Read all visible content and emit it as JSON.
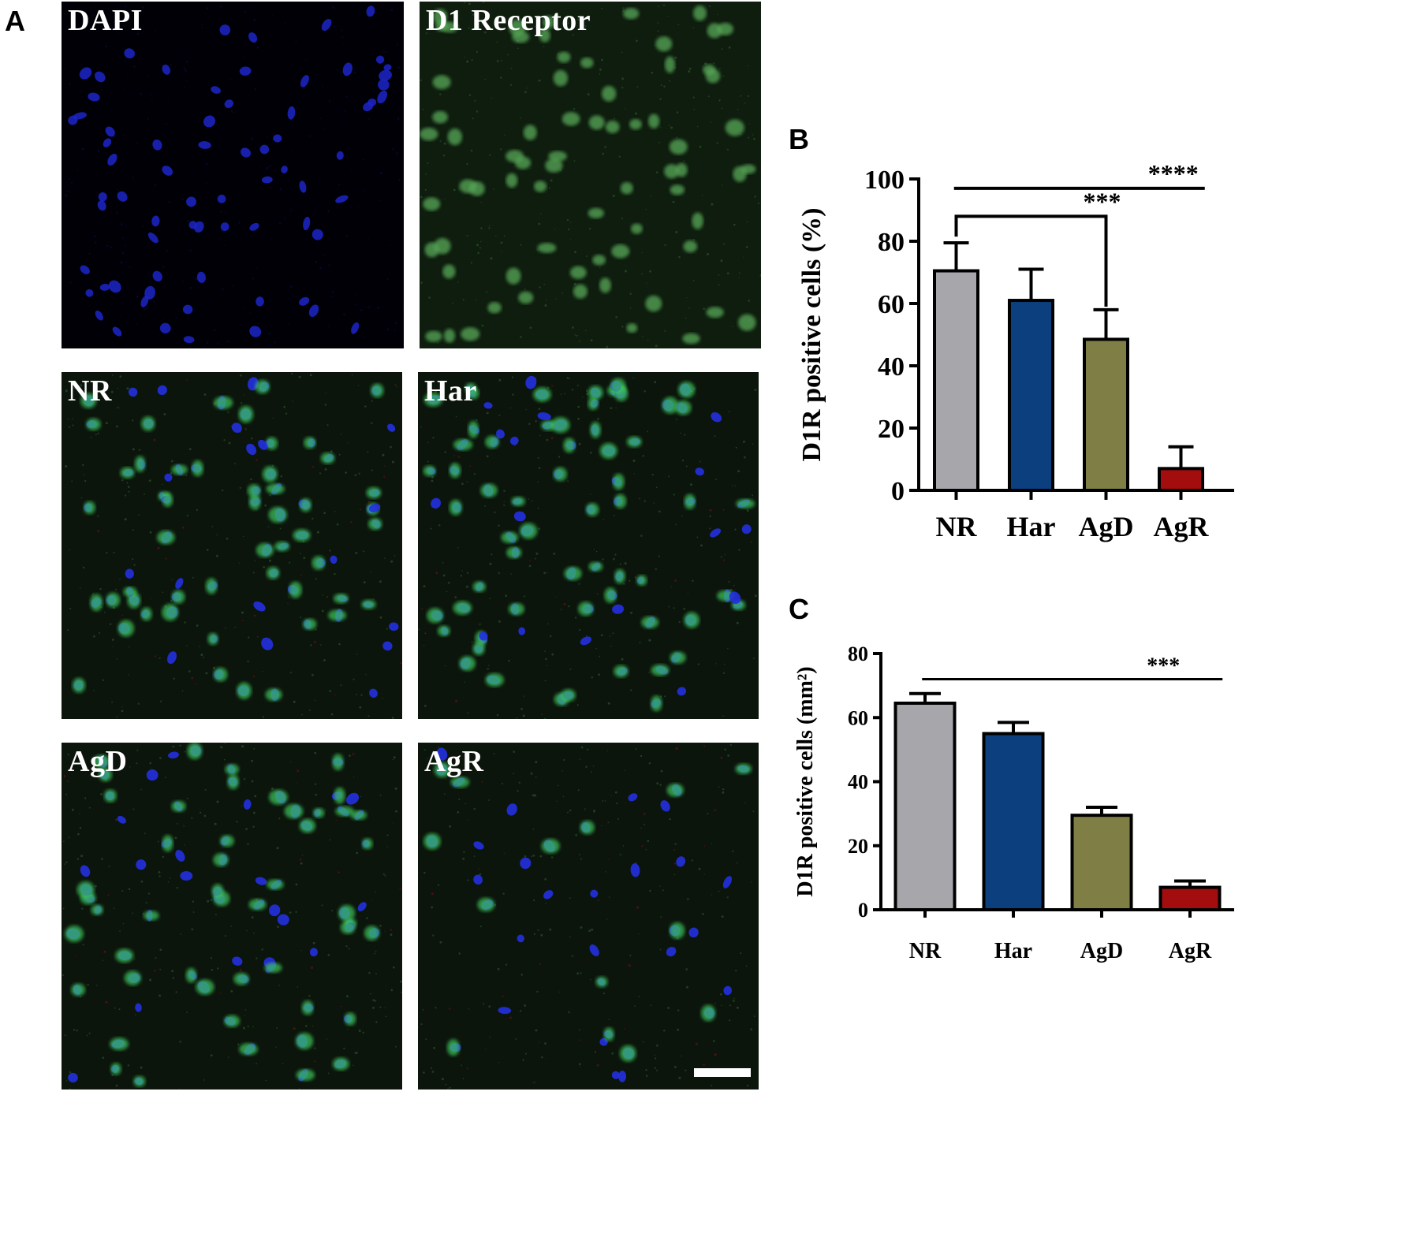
{
  "panels": {
    "A": {
      "letter": "A",
      "images": [
        {
          "label": "DAPI",
          "channel": "blue"
        },
        {
          "label": "D1 Receptor",
          "channel": "green"
        },
        {
          "label": "NR",
          "channel": "merge",
          "density": 1.0
        },
        {
          "label": "Har",
          "channel": "merge",
          "density": 1.1
        },
        {
          "label": "AgD",
          "channel": "merge",
          "density": 0.95
        },
        {
          "label": "AgR",
          "channel": "merge",
          "density": 0.5
        }
      ]
    },
    "B": {
      "letter": "B"
    },
    "C": {
      "letter": "C"
    }
  },
  "colors": {
    "NR": "#a6a6ab",
    "Har": "#0b3f7e",
    "AgD": "#7f7f45",
    "AgR": "#a30d0d"
  },
  "chart_data": [
    {
      "id": "B",
      "type": "bar",
      "categories": [
        "NR",
        "Har",
        "AgD",
        "AgR"
      ],
      "values": [
        70.5,
        61,
        48.5,
        7
      ],
      "errors": [
        9,
        10,
        9.5,
        7
      ],
      "ylabel": "D1R positive cells (%)",
      "ylim": [
        0,
        100
      ],
      "yticks": [
        0,
        20,
        40,
        60,
        80,
        100
      ],
      "significance": [
        {
          "from": "NR",
          "to": "AgR",
          "label": "****",
          "style": "line",
          "y": 97
        },
        {
          "from": "NR",
          "to": "AgD",
          "label": "***",
          "style": "bracket",
          "y": 88
        }
      ]
    },
    {
      "id": "C",
      "type": "bar",
      "categories": [
        "NR",
        "Har",
        "AgD",
        "AgR"
      ],
      "values": [
        64.5,
        55,
        29.5,
        7
      ],
      "errors": [
        3,
        3.5,
        2.5,
        2
      ],
      "ylabel": "D1R positive cells (mm²)",
      "ylim": [
        0,
        80
      ],
      "yticks": [
        0,
        20,
        40,
        60,
        80
      ],
      "significance": [
        {
          "from": "NR",
          "to": "AgR",
          "label": "***",
          "style": "line",
          "y": 72
        }
      ]
    }
  ]
}
